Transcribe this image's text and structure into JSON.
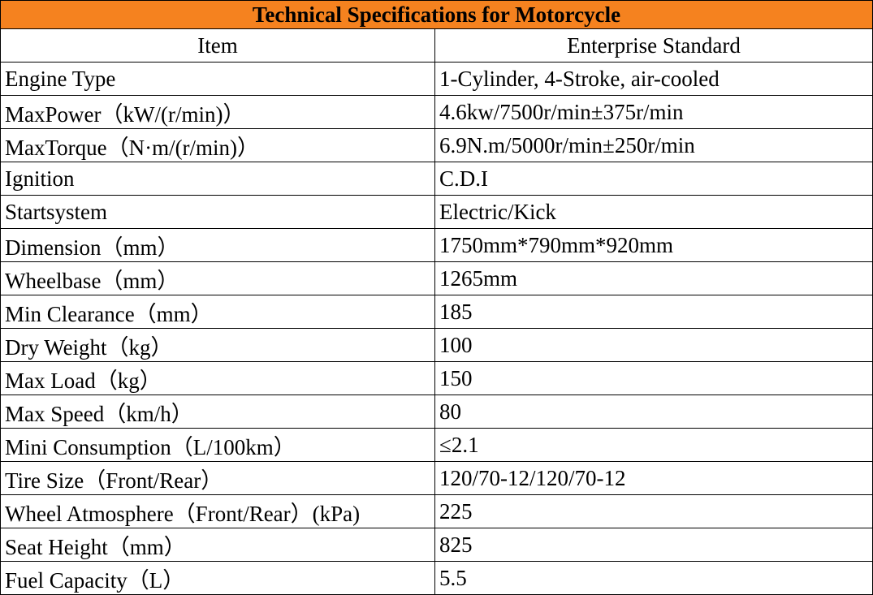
{
  "table": {
    "title": "Technical Specifications for Motorcycle",
    "header": [
      "Item",
      "Enterprise Standard"
    ],
    "rows": [
      [
        "Engine Type",
        "1-Cylinder, 4-Stroke, air-cooled"
      ],
      [
        "MaxPower（kW/(r/min)）",
        "4.6kw/7500r/min±375r/min"
      ],
      [
        "MaxTorque（N·m/(r/min)）",
        "6.9N.m/5000r/min±250r/min"
      ],
      [
        "Ignition",
        "C.D.I"
      ],
      [
        "Startsystem",
        "Electric/Kick"
      ],
      [
        "Dimension（mm）",
        "1750mm*790mm*920mm"
      ],
      [
        "Wheelbase（mm）",
        "1265mm"
      ],
      [
        "Min Clearance（mm）",
        "185"
      ],
      [
        "Dry Weight（kg）",
        "100"
      ],
      [
        "Max Load（kg）",
        "150"
      ],
      [
        "Max Speed（km/h）",
        "80"
      ],
      [
        "Mini Consumption（L/100km）",
        "≤2.1"
      ],
      [
        "Tire Size（Front/Rear）",
        "120/70-12/120/70-12"
      ],
      [
        "Wheel Atmosphere（Front/Rear）(kPa)",
        "225"
      ],
      [
        "Seat Height（mm）",
        "825"
      ],
      [
        "Fuel Capacity（L）",
        "5.5"
      ]
    ]
  }
}
